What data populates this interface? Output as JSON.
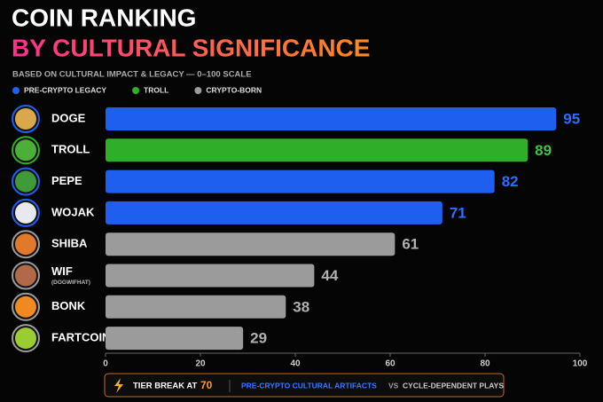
{
  "chart_data": {
    "type": "bar",
    "orientation": "horizontal",
    "title": "COIN RANKING",
    "title_line2": "BY CULTURAL SIGNIFICANCE",
    "subtitle": "BASED ON CULTURAL IMPACT & LEGACY — 0–100 SCALE",
    "categories": [
      "DOGE",
      "TROLL",
      "PEPE",
      "WOJAK",
      "SHIBA",
      "WIF",
      "BONK",
      "FARTCOIN"
    ],
    "category_notes": [
      null,
      null,
      null,
      null,
      null,
      "(DOGWIFHAT)",
      null,
      null
    ],
    "series": [
      {
        "name": "PRE-CRYPTO LEGACY",
        "color": "#1f5ff0",
        "values": [
          95,
          null,
          82,
          71,
          null,
          null,
          null,
          null
        ]
      },
      {
        "name": "TROLL",
        "color": "#2fae2a",
        "values": [
          null,
          89,
          null,
          null,
          null,
          null,
          null,
          null
        ]
      },
      {
        "name": "CRYPTO-BORN",
        "color": "#9b9b9b",
        "values": [
          null,
          null,
          null,
          null,
          61,
          44,
          38,
          29
        ]
      }
    ],
    "xlim": [
      0,
      100
    ],
    "xticks": [
      0,
      20,
      40,
      60,
      80,
      100
    ],
    "annotation": {
      "label": "TIER BREAK AT",
      "value": 70,
      "left": "PRE-CRYPTO CULTURAL ARTIFACTS",
      "vs": "VS",
      "right": "CYCLE-DEPENDENT PLAYS"
    }
  }
}
